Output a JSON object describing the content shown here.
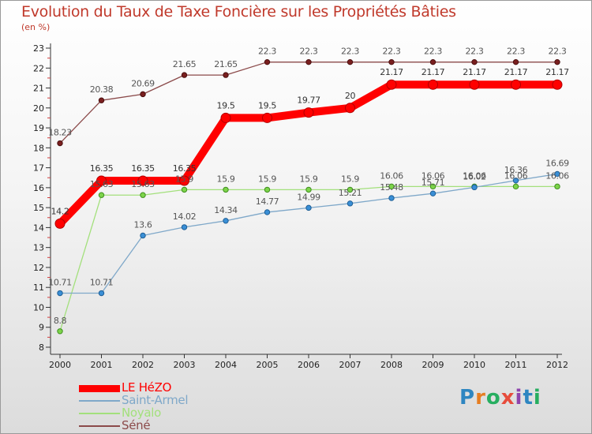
{
  "title": "Evolution du Taux de Taxe Foncière sur les Propriétés Bâties",
  "unit_label": "(en %)",
  "logo": {
    "text": "Proxiti",
    "letter_colors": [
      "#2e86c1",
      "#e67e22",
      "#27ae60",
      "#e74c3c",
      "#8e44ad",
      "#2e86c1",
      "#27ae60"
    ]
  },
  "chart_data": {
    "type": "line",
    "title": "Evolution du Taux de Taxe Foncière sur les Propriétés Bâties",
    "xlabel": "",
    "ylabel": "(en %)",
    "ylim": [
      8,
      23
    ],
    "yticks": [
      8,
      9,
      10,
      11,
      12,
      13,
      14,
      15,
      16,
      17,
      18,
      19,
      20,
      21,
      22,
      23
    ],
    "categories": [
      "2000",
      "2001",
      "2002",
      "2003",
      "2004",
      "2005",
      "2006",
      "2007",
      "2008",
      "2009",
      "2010",
      "2011",
      "2012"
    ],
    "grid": false,
    "legend_position": "bottom-left",
    "series": [
      {
        "name": "LE HéZO",
        "color": "#ff0000",
        "values": [
          14.2,
          16.35,
          16.35,
          16.35,
          19.5,
          19.5,
          19.77,
          20,
          21.17,
          21.17,
          21.17,
          21.17,
          21.17
        ],
        "labels": [
          "14.2",
          "16.35",
          "16.35",
          "16.35",
          "19.5",
          "19.5",
          "19.77",
          "20",
          "21.17",
          "21.17",
          "21.17",
          "21.17",
          "21.17"
        ]
      },
      {
        "name": "Saint-Armel",
        "color": "#7fa8c9",
        "values": [
          10.71,
          10.71,
          13.6,
          14.02,
          14.34,
          14.77,
          14.99,
          15.21,
          15.48,
          15.71,
          16.02,
          16.36,
          16.69
        ],
        "labels": [
          "10.71",
          "10.71",
          "13.6",
          "14.02",
          "14.34",
          "14.77",
          "14.99",
          "15.21",
          "15.48",
          "15.71",
          "16.02",
          "16.36",
          "16.69"
        ]
      },
      {
        "name": "Noyalo",
        "color": "#a3e07c",
        "values": [
          8.8,
          15.63,
          15.63,
          15.9,
          15.9,
          15.9,
          15.9,
          15.9,
          16.06,
          16.06,
          16.06,
          16.06,
          16.06
        ],
        "labels": [
          "8.8",
          "15.63",
          "15.63",
          "15.9",
          "15.9",
          "15.9",
          "15.9",
          "15.9",
          "16.06",
          "16.06",
          "16.06",
          "16.06",
          "16.06"
        ]
      },
      {
        "name": "Séné",
        "color": "#8b4a4a",
        "values": [
          18.23,
          20.38,
          20.69,
          21.65,
          21.65,
          22.3,
          22.3,
          22.3,
          22.3,
          22.3,
          22.3,
          22.3,
          22.3
        ],
        "labels": [
          "18.23",
          "20.38",
          "20.69",
          "21.65",
          "21.65",
          "22.3",
          "22.3",
          "22.3",
          "22.3",
          "22.3",
          "22.3",
          "22.3",
          "22.3"
        ]
      }
    ]
  }
}
